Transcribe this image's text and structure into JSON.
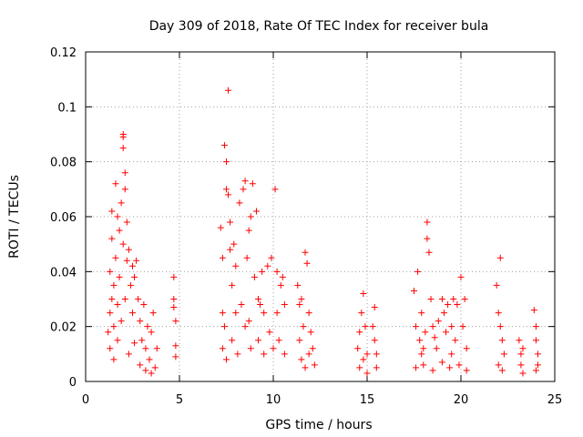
{
  "chart_data": {
    "type": "scatter",
    "title": "Day 309 of 2018, Rate Of TEC Index for receiver bula",
    "xlabel": "GPS time / hours",
    "ylabel": "ROTI / TECUs",
    "xlim": [
      0,
      25
    ],
    "ylim": [
      0,
      0.12
    ],
    "xticks": [
      0,
      5,
      10,
      15,
      20,
      25
    ],
    "xtick_labels": [
      "0",
      "5",
      "10",
      "15",
      "20",
      "25"
    ],
    "yticks": [
      0,
      0.02,
      0.04,
      0.06,
      0.08,
      0.1,
      0.12
    ],
    "ytick_labels": [
      "0",
      "0.02",
      "0.04",
      "0.06",
      "0.08",
      "0.1",
      "0.12"
    ],
    "grid": true,
    "marker": "+",
    "color": "#ff0000",
    "series": [
      {
        "points": [
          [
            1.2,
            0.018
          ],
          [
            1.3,
            0.025
          ],
          [
            1.3,
            0.04
          ],
          [
            1.4,
            0.03
          ],
          [
            1.4,
            0.052
          ],
          [
            1.5,
            0.02
          ],
          [
            1.5,
            0.035
          ],
          [
            1.6,
            0.045
          ],
          [
            1.6,
            0.072
          ],
          [
            1.7,
            0.028
          ],
          [
            1.7,
            0.06
          ],
          [
            1.8,
            0.038
          ],
          [
            1.8,
            0.055
          ],
          [
            1.9,
            0.065
          ],
          [
            1.9,
            0.022
          ],
          [
            2.0,
            0.09
          ],
          [
            2.0,
            0.089
          ],
          [
            2.0,
            0.085
          ],
          [
            2.0,
            0.05
          ],
          [
            2.1,
            0.076
          ],
          [
            2.1,
            0.07
          ],
          [
            2.1,
            0.03
          ],
          [
            2.2,
            0.058
          ],
          [
            2.2,
            0.044
          ],
          [
            2.3,
            0.048
          ],
          [
            2.4,
            0.035
          ],
          [
            2.5,
            0.042
          ],
          [
            2.5,
            0.025
          ],
          [
            2.6,
            0.038
          ],
          [
            2.7,
            0.044
          ],
          [
            2.8,
            0.03
          ],
          [
            2.9,
            0.022
          ],
          [
            3.0,
            0.015
          ],
          [
            3.1,
            0.028
          ],
          [
            3.2,
            0.012
          ],
          [
            3.3,
            0.02
          ],
          [
            3.4,
            0.008
          ],
          [
            3.5,
            0.018
          ],
          [
            3.6,
            0.025
          ],
          [
            3.7,
            0.005
          ],
          [
            1.3,
            0.012
          ],
          [
            1.5,
            0.008
          ],
          [
            1.7,
            0.015
          ],
          [
            2.3,
            0.01
          ],
          [
            2.6,
            0.014
          ],
          [
            2.9,
            0.006
          ],
          [
            3.2,
            0.004
          ],
          [
            3.5,
            0.003
          ],
          [
            3.8,
            0.012
          ],
          [
            1.4,
            0.062
          ],
          [
            4.7,
            0.038
          ],
          [
            4.7,
            0.03
          ],
          [
            4.8,
            0.022
          ],
          [
            4.8,
            0.013
          ],
          [
            4.8,
            0.009
          ],
          [
            4.7,
            0.027
          ],
          [
            7.2,
            0.056
          ],
          [
            7.3,
            0.045
          ],
          [
            7.3,
            0.025
          ],
          [
            7.4,
            0.086
          ],
          [
            7.5,
            0.08
          ],
          [
            7.5,
            0.07
          ],
          [
            7.6,
            0.068
          ],
          [
            7.6,
            0.106
          ],
          [
            7.7,
            0.058
          ],
          [
            7.7,
            0.048
          ],
          [
            7.8,
            0.035
          ],
          [
            7.9,
            0.05
          ],
          [
            8.0,
            0.042
          ],
          [
            8.2,
            0.065
          ],
          [
            8.3,
            0.028
          ],
          [
            8.4,
            0.07
          ],
          [
            8.5,
            0.073
          ],
          [
            8.6,
            0.045
          ],
          [
            8.7,
            0.055
          ],
          [
            8.8,
            0.06
          ],
          [
            8.9,
            0.072
          ],
          [
            9.0,
            0.038
          ],
          [
            9.1,
            0.062
          ],
          [
            9.2,
            0.03
          ],
          [
            9.4,
            0.04
          ],
          [
            9.5,
            0.025
          ],
          [
            9.7,
            0.042
          ],
          [
            9.9,
            0.045
          ],
          [
            10.1,
            0.07
          ],
          [
            10.2,
            0.04
          ],
          [
            10.4,
            0.035
          ],
          [
            10.5,
            0.038
          ],
          [
            10.6,
            0.028
          ],
          [
            7.3,
            0.012
          ],
          [
            7.5,
            0.008
          ],
          [
            7.8,
            0.015
          ],
          [
            8.1,
            0.01
          ],
          [
            8.5,
            0.02
          ],
          [
            8.8,
            0.012
          ],
          [
            9.2,
            0.015
          ],
          [
            9.5,
            0.01
          ],
          [
            9.8,
            0.018
          ],
          [
            10.0,
            0.012
          ],
          [
            10.3,
            0.015
          ],
          [
            10.6,
            0.01
          ],
          [
            7.4,
            0.02
          ],
          [
            8.0,
            0.025
          ],
          [
            8.7,
            0.022
          ],
          [
            9.3,
            0.028
          ],
          [
            10.2,
            0.025
          ],
          [
            11.3,
            0.035
          ],
          [
            11.4,
            0.028
          ],
          [
            11.5,
            0.03
          ],
          [
            11.6,
            0.02
          ],
          [
            11.7,
            0.047
          ],
          [
            11.8,
            0.043
          ],
          [
            11.9,
            0.025
          ],
          [
            12.0,
            0.018
          ],
          [
            12.1,
            0.012
          ],
          [
            11.5,
            0.008
          ],
          [
            11.7,
            0.005
          ],
          [
            11.9,
            0.01
          ],
          [
            12.2,
            0.006
          ],
          [
            11.4,
            0.015
          ],
          [
            14.5,
            0.012
          ],
          [
            14.6,
            0.018
          ],
          [
            14.7,
            0.025
          ],
          [
            14.8,
            0.032
          ],
          [
            14.9,
            0.02
          ],
          [
            15.0,
            0.01
          ],
          [
            14.6,
            0.005
          ],
          [
            14.8,
            0.008
          ],
          [
            15.0,
            0.003
          ],
          [
            15.4,
            0.027
          ],
          [
            15.4,
            0.015
          ],
          [
            15.5,
            0.01
          ],
          [
            15.5,
            0.005
          ],
          [
            15.3,
            0.02
          ],
          [
            17.5,
            0.033
          ],
          [
            17.6,
            0.02
          ],
          [
            17.7,
            0.04
          ],
          [
            17.8,
            0.015
          ],
          [
            17.9,
            0.025
          ],
          [
            18.0,
            0.012
          ],
          [
            18.1,
            0.018
          ],
          [
            18.2,
            0.058
          ],
          [
            18.2,
            0.052
          ],
          [
            18.3,
            0.047
          ],
          [
            18.4,
            0.03
          ],
          [
            18.5,
            0.02
          ],
          [
            18.6,
            0.016
          ],
          [
            18.8,
            0.022
          ],
          [
            19.0,
            0.03
          ],
          [
            19.1,
            0.025
          ],
          [
            19.2,
            0.018
          ],
          [
            19.3,
            0.028
          ],
          [
            19.5,
            0.02
          ],
          [
            19.6,
            0.03
          ],
          [
            19.7,
            0.015
          ],
          [
            19.8,
            0.028
          ],
          [
            20.0,
            0.038
          ],
          [
            20.1,
            0.02
          ],
          [
            20.2,
            0.03
          ],
          [
            20.3,
            0.012
          ],
          [
            17.6,
            0.005
          ],
          [
            18.0,
            0.006
          ],
          [
            18.5,
            0.004
          ],
          [
            19.0,
            0.007
          ],
          [
            19.4,
            0.005
          ],
          [
            19.9,
            0.006
          ],
          [
            20.3,
            0.004
          ],
          [
            17.9,
            0.01
          ],
          [
            18.7,
            0.012
          ],
          [
            19.5,
            0.01
          ],
          [
            21.9,
            0.035
          ],
          [
            22.0,
            0.025
          ],
          [
            22.1,
            0.045
          ],
          [
            22.1,
            0.02
          ],
          [
            22.2,
            0.015
          ],
          [
            22.3,
            0.01
          ],
          [
            22.0,
            0.006
          ],
          [
            22.2,
            0.004
          ],
          [
            23.1,
            0.015
          ],
          [
            23.2,
            0.01
          ],
          [
            23.2,
            0.006
          ],
          [
            23.3,
            0.003
          ],
          [
            23.3,
            0.012
          ],
          [
            23.9,
            0.026
          ],
          [
            24.0,
            0.02
          ],
          [
            24.0,
            0.015
          ],
          [
            24.1,
            0.01
          ],
          [
            24.1,
            0.006
          ],
          [
            24.0,
            0.004
          ]
        ]
      }
    ]
  }
}
